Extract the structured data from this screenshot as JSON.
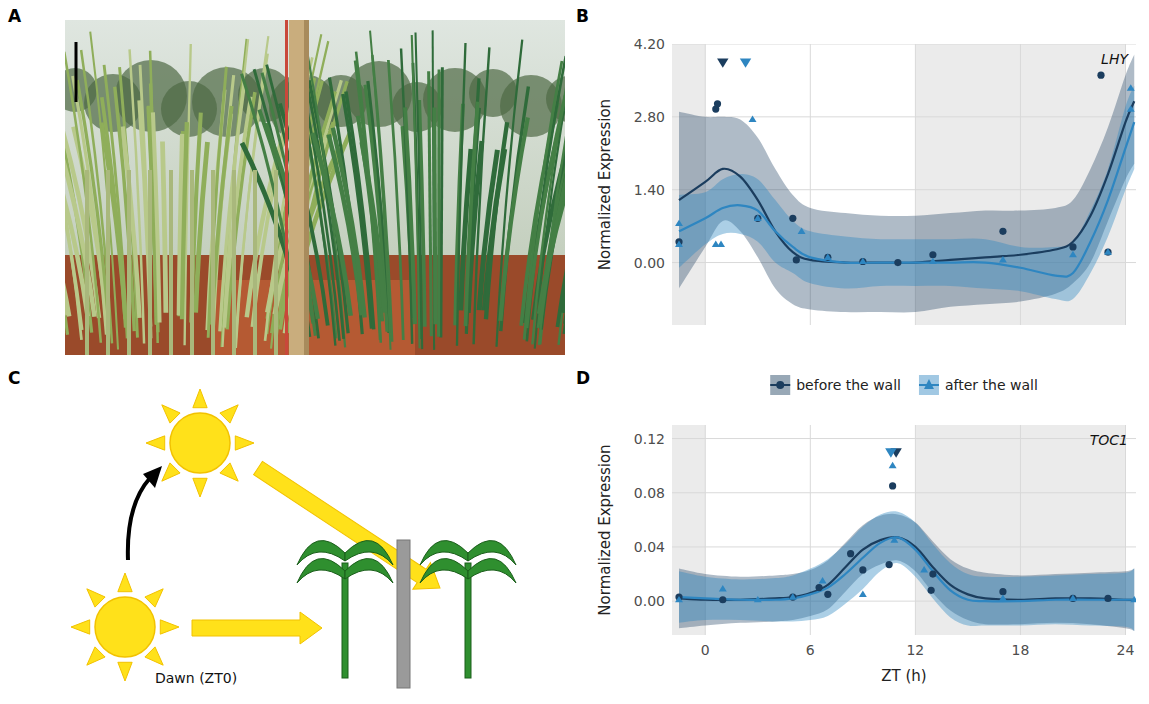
{
  "panel_labels": [
    "A",
    "B",
    "C",
    "D"
  ],
  "diagram": {
    "caption": "Dawn (ZT0)"
  },
  "chart_data": [
    {
      "type": "line",
      "title": "LHY",
      "y_label": "Normalized Expression",
      "xlim": [
        -1.9,
        24.6
      ],
      "ylim": [
        -1.2,
        4.2
      ],
      "xticks": [
        0,
        6,
        12,
        18,
        24
      ],
      "yticks": [
        {
          "value": 0,
          "label": "0.00"
        },
        {
          "value": 1.4,
          "label": "1.40"
        },
        {
          "value": 2.8,
          "label": "2.80"
        },
        {
          "value": 4.2,
          "label": "4.20"
        }
      ],
      "grid": true,
      "legend": "bottom",
      "tick_labels": "y",
      "night": [
        [
          -1.9,
          0
        ],
        [
          12,
          24
        ]
      ],
      "series": [
        {
          "name": "before the wall",
          "color": "#1b3d5e",
          "marker": "circle",
          "x": [
            -1.5,
            0.6,
            0.7,
            3.0,
            5.0,
            5.2,
            7.0,
            9.0,
            11.0,
            13.0,
            17.0,
            21.0,
            22.6,
            23.0
          ],
          "values": [
            0.4,
            2.95,
            3.05,
            0.85,
            0.85,
            0.05,
            0.1,
            0.02,
            0.0,
            0.15,
            0.6,
            0.3,
            3.6,
            0.2
          ],
          "fit_x": [
            -1.5,
            0,
            1,
            2,
            3,
            4,
            5,
            6,
            8,
            10,
            12,
            14,
            16,
            18,
            20,
            21,
            22,
            23,
            24,
            24.5
          ],
          "fit": [
            1.2,
            1.55,
            1.8,
            1.65,
            1.2,
            0.6,
            0.2,
            0.05,
            0,
            0,
            0,
            0.05,
            0.1,
            0.15,
            0.25,
            0.4,
            0.9,
            1.7,
            2.7,
            3.1
          ],
          "fit_lower": [
            -0.5,
            0.3,
            0.8,
            0.6,
            0.1,
            -0.5,
            -0.8,
            -0.9,
            -0.95,
            -0.95,
            -0.95,
            -0.85,
            -0.8,
            -0.75,
            -0.6,
            -0.4,
            0,
            0.8,
            1.6,
            1.9
          ],
          "fit_upper": [
            2.9,
            2.8,
            2.8,
            2.75,
            2.4,
            1.8,
            1.3,
            1.05,
            0.95,
            0.9,
            0.9,
            0.95,
            1.0,
            1.0,
            1.05,
            1.2,
            1.8,
            2.6,
            3.6,
            4.0
          ],
          "peak_x": 1.0,
          "peak_y": 3.85
        },
        {
          "name": "after the wall",
          "color": "#2e86c1",
          "marker": "triangle",
          "x": [
            -1.5,
            -1.5,
            0.6,
            0.9,
            2.7,
            3.0,
            5.5,
            7.0,
            9.0,
            13.0,
            17.0,
            21.0,
            23.0,
            24.3,
            24.3
          ],
          "values": [
            0.75,
            0.35,
            0.35,
            0.35,
            2.75,
            0.85,
            0.6,
            0.1,
            0.02,
            0.02,
            0.05,
            0.15,
            0.2,
            3.35,
            2.95
          ],
          "fit_x": [
            -1.5,
            0,
            1,
            2,
            3,
            4,
            5,
            6,
            8,
            10,
            12,
            14,
            16,
            18,
            20,
            21,
            22,
            23,
            24,
            24.5
          ],
          "fit": [
            0.6,
            0.85,
            1.05,
            1.1,
            1.0,
            0.6,
            0.3,
            0.1,
            0,
            0,
            0,
            0,
            0,
            -0.1,
            -0.25,
            -0.2,
            0.4,
            1.2,
            2.2,
            2.7
          ],
          "fit_lower": [
            -0.1,
            0.35,
            0.55,
            0.55,
            0.4,
            0,
            -0.2,
            -0.4,
            -0.5,
            -0.45,
            -0.45,
            -0.45,
            -0.5,
            -0.55,
            -0.7,
            -0.7,
            -0.2,
            0.5,
            1.4,
            1.8
          ],
          "fit_upper": [
            1.3,
            1.35,
            1.6,
            1.7,
            1.6,
            1.2,
            0.8,
            0.6,
            0.5,
            0.45,
            0.45,
            0.45,
            0.45,
            0.3,
            0.3,
            0.4,
            1.0,
            1.8,
            3.0,
            3.4
          ],
          "peak_x": 2.3,
          "peak_y": 3.85
        }
      ]
    },
    {
      "type": "line",
      "title": "TOC1",
      "y_label": "Normalized Expression",
      "x_label": "ZT (h)",
      "xlim": [
        -1.9,
        24.6
      ],
      "ylim": [
        -0.025,
        0.13
      ],
      "xticks": [
        0,
        6,
        12,
        18,
        24
      ],
      "yticks": [
        {
          "value": 0,
          "label": "0.00"
        },
        {
          "value": 0.04,
          "label": "0.04"
        },
        {
          "value": 0.08,
          "label": "0.08"
        },
        {
          "value": 0.12,
          "label": "0.12"
        }
      ],
      "grid": true,
      "night": [
        [
          -1.9,
          0
        ],
        [
          12,
          24
        ]
      ],
      "series": [
        {
          "name": "before the wall",
          "color": "#1b3d5e",
          "marker": "circle",
          "x": [
            -1.5,
            1,
            5,
            6.5,
            7,
            8.3,
            9,
            10.5,
            10.7,
            12.9,
            13,
            17,
            21,
            23
          ],
          "values": [
            0.003,
            0.001,
            0.003,
            0.01,
            0.005,
            0.035,
            0.023,
            0.027,
            0.085,
            0.008,
            0.02,
            0.007,
            0.002,
            0.002
          ],
          "fit_x": [
            -1.5,
            0,
            2,
            4,
            5,
            6,
            7,
            8,
            9,
            10,
            11,
            12,
            13,
            14,
            15,
            16,
            18,
            20,
            22,
            24,
            24.5
          ],
          "fit": [
            0.002,
            0.001,
            0.001,
            0.002,
            0.003,
            0.006,
            0.012,
            0.025,
            0.038,
            0.045,
            0.047,
            0.04,
            0.025,
            0.012,
            0.005,
            0.002,
            0.001,
            0.002,
            0.002,
            0.001,
            0.001
          ],
          "fit_lower": [
            -0.02,
            -0.018,
            -0.016,
            -0.015,
            -0.014,
            -0.011,
            -0.006,
            0.007,
            0.02,
            0.027,
            0.03,
            0.022,
            0.006,
            -0.007,
            -0.014,
            -0.017,
            -0.017,
            -0.016,
            -0.017,
            -0.02,
            -0.022
          ],
          "fit_upper": [
            0.024,
            0.02,
            0.018,
            0.019,
            0.02,
            0.023,
            0.03,
            0.043,
            0.056,
            0.063,
            0.064,
            0.058,
            0.044,
            0.031,
            0.024,
            0.021,
            0.019,
            0.02,
            0.021,
            0.022,
            0.024
          ],
          "peak_x": 10.9,
          "peak_y": 0.11
        },
        {
          "name": "after the wall",
          "color": "#2e86c1",
          "marker": "triangle",
          "x": [
            -1.5,
            1,
            3,
            5,
            6.7,
            9,
            10.7,
            10.8,
            12.5,
            17,
            21,
            24.5
          ],
          "values": [
            0.001,
            0.009,
            0.001,
            0.003,
            0.015,
            0.005,
            0.1,
            0.045,
            0.023,
            0.002,
            0.002,
            0.001
          ],
          "fit_x": [
            -1.5,
            0,
            2,
            4,
            5,
            6,
            7,
            8,
            9,
            10,
            11,
            12,
            13,
            14,
            15,
            16,
            18,
            20,
            22,
            24,
            24.5
          ],
          "fit": [
            0.003,
            0.002,
            0.001,
            0.001,
            0.002,
            0.005,
            0.01,
            0.02,
            0.032,
            0.043,
            0.047,
            0.038,
            0.022,
            0.008,
            0.001,
            0,
            0,
            0.001,
            0.001,
            0.001,
            0.001
          ],
          "fit_lower": [
            -0.016,
            -0.014,
            -0.014,
            -0.015,
            -0.015,
            -0.014,
            -0.011,
            -0.002,
            0.009,
            0.022,
            0.028,
            0.018,
            0.002,
            -0.012,
            -0.018,
            -0.018,
            -0.018,
            -0.017,
            -0.018,
            -0.019,
            -0.022
          ],
          "fit_upper": [
            0.022,
            0.018,
            0.016,
            0.017,
            0.019,
            0.024,
            0.031,
            0.042,
            0.055,
            0.064,
            0.066,
            0.058,
            0.042,
            0.028,
            0.02,
            0.018,
            0.018,
            0.019,
            0.02,
            0.021,
            0.024
          ],
          "peak_x": 10.6,
          "peak_y": 0.11
        }
      ]
    }
  ]
}
